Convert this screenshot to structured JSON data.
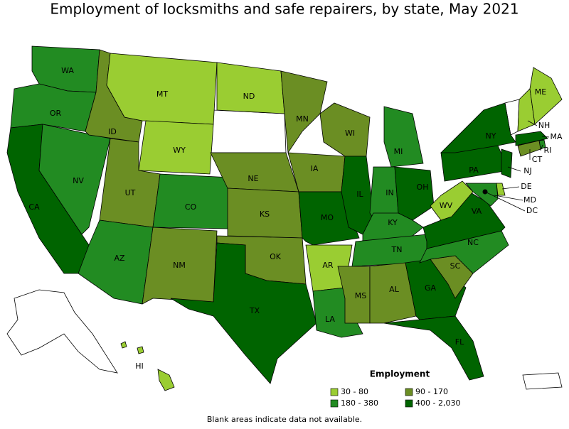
{
  "title": "Employment of locksmiths and safe repairers, by state, May 2021",
  "map": {
    "states": [
      {
        "label": "WA",
        "color": "#228b22"
      },
      {
        "label": "OR",
        "color": "#228b22"
      },
      {
        "label": "CA",
        "color": "#006400"
      },
      {
        "label": "NV",
        "color": "#228b22"
      },
      {
        "label": "ID",
        "color": "#6b8e23"
      },
      {
        "label": "MT",
        "color": "#9acd32"
      },
      {
        "label": "WY",
        "color": "#9acd32"
      },
      {
        "label": "UT",
        "color": "#6b8e23"
      },
      {
        "label": "CO",
        "color": "#228b22"
      },
      {
        "label": "AZ",
        "color": "#228b22"
      },
      {
        "label": "NM",
        "color": "#6b8e23"
      },
      {
        "label": "ND",
        "color": "#9acd32"
      },
      {
        "label": "NE",
        "color": "#6b8e23"
      },
      {
        "label": "KS",
        "color": "#6b8e23"
      },
      {
        "label": "OK",
        "color": "#6b8e23"
      },
      {
        "label": "TX",
        "color": "#006400"
      },
      {
        "label": "MN",
        "color": "#6b8e23"
      },
      {
        "label": "IA",
        "color": "#6b8e23"
      },
      {
        "label": "MO",
        "color": "#006400"
      },
      {
        "label": "AR",
        "color": "#9acd32"
      },
      {
        "label": "LA",
        "color": "#228b22"
      },
      {
        "label": "WI",
        "color": "#6b8e23"
      },
      {
        "label": "IL",
        "color": "#006400"
      },
      {
        "label": "MI",
        "color": "#228b22"
      },
      {
        "label": "IN",
        "color": "#228b22"
      },
      {
        "label": "OH",
        "color": "#006400"
      },
      {
        "label": "KY",
        "color": "#228b22"
      },
      {
        "label": "TN",
        "color": "#228b22"
      },
      {
        "label": "MS",
        "color": "#6b8e23"
      },
      {
        "label": "AL",
        "color": "#6b8e23"
      },
      {
        "label": "GA",
        "color": "#006400"
      },
      {
        "label": "FL",
        "color": "#006400"
      },
      {
        "label": "SC",
        "color": "#6b8e23"
      },
      {
        "label": "NC",
        "color": "#228b22"
      },
      {
        "label": "VA",
        "color": "#006400"
      },
      {
        "label": "WV",
        "color": "#9acd32"
      },
      {
        "label": "PA",
        "color": "#006400"
      },
      {
        "label": "NY",
        "color": "#006400"
      },
      {
        "label": "NH",
        "color": "#9acd32"
      },
      {
        "label": "ME",
        "color": "#9acd32"
      },
      {
        "label": "MA",
        "color": "#006400"
      },
      {
        "label": "RI",
        "color": "#228b22"
      },
      {
        "label": "CT",
        "color": "#6b8e23"
      },
      {
        "label": "NJ",
        "color": "#006400"
      },
      {
        "label": "DE",
        "color": "#9acd32"
      },
      {
        "label": "MD",
        "color": "#228b22"
      },
      {
        "label": "DC",
        "color": "#006400"
      },
      {
        "label": "HI",
        "color": "#9acd32"
      }
    ]
  },
  "legend": {
    "title": "Employment",
    "items": [
      {
        "label": "30 - 80",
        "color": "#9acd32"
      },
      {
        "label": "90 - 170",
        "color": "#6b8e23"
      },
      {
        "label": "180 - 380",
        "color": "#228b22"
      },
      {
        "label": "400 - 2,030",
        "color": "#006400"
      }
    ]
  },
  "note": "Blank areas indicate data not available."
}
